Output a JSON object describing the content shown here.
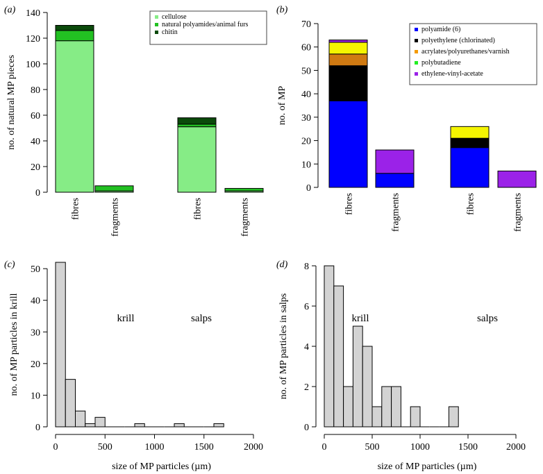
{
  "chart_data": [
    {
      "panel": "(a)",
      "type": "bar",
      "stacked": true,
      "ylabel": "no. of natural MP pieces",
      "ylim": [
        0,
        140
      ],
      "yticks": [
        0,
        20,
        40,
        60,
        80,
        100,
        120,
        140
      ],
      "categories": [
        "fibres",
        "fragments",
        "fibres",
        "fragments"
      ],
      "groups": [
        "krill",
        "salps"
      ],
      "series": [
        {
          "name": "cellulose",
          "color": "#86ec86",
          "values": [
            118,
            1,
            51,
            1
          ]
        },
        {
          "name": "natural polyamides/animal furs",
          "color": "#22c022",
          "values": [
            8,
            4,
            2,
            2
          ]
        },
        {
          "name": "chitin",
          "color": "#0b4a0b",
          "values": [
            4,
            0,
            5,
            0
          ]
        }
      ]
    },
    {
      "panel": "(b)",
      "type": "bar",
      "stacked": true,
      "ylabel": "no. of MP",
      "ylim": [
        0,
        70
      ],
      "yticks": [
        0,
        10,
        20,
        30,
        40,
        50,
        60,
        70
      ],
      "categories": [
        "fibres",
        "fragments",
        "fibres",
        "fragments"
      ],
      "groups": [
        "krill",
        "salps"
      ],
      "series": [
        {
          "name": "polyamide (6)",
          "color": "#0000ff",
          "values": [
            37,
            6,
            17,
            0
          ]
        },
        {
          "name": "polyethylene (chlorinated)",
          "color": "#000000",
          "values": [
            15,
            0,
            4,
            0
          ]
        },
        {
          "name": "acrylates/polyurethanes/varnish",
          "color": "#d07a12",
          "values": [
            5,
            0,
            0,
            0
          ]
        },
        {
          "name": "polybutadiene",
          "color": "#f5f500",
          "values": [
            5,
            0,
            5,
            0
          ]
        },
        {
          "name": "ethylene-vinyl-acetate",
          "color": "#9b22e8",
          "values": [
            1,
            10,
            0,
            7
          ]
        }
      ],
      "legend_marker_colors": [
        "#0000ff",
        "#000000",
        "#f59a00",
        "#22ee22",
        "#9b22e8"
      ]
    },
    {
      "panel": "(c)",
      "type": "histogram",
      "xlabel": "size of MP particles (µm)",
      "ylabel": "no. of MP particles in  krill",
      "xlim": [
        0,
        2000
      ],
      "ylim": [
        0,
        52
      ],
      "xticks": [
        0,
        500,
        1000,
        1500,
        2000
      ],
      "yticks": [
        0,
        10,
        20,
        30,
        40,
        50
      ],
      "bin_width": 100,
      "bin_starts": [
        0,
        100,
        200,
        300,
        400,
        500,
        600,
        700,
        800,
        900,
        1000,
        1100,
        1200,
        1300,
        1400,
        1500,
        1600
      ],
      "values": [
        52,
        15,
        5,
        1,
        3,
        0,
        0,
        0,
        1,
        0,
        0,
        0,
        1,
        0,
        0,
        0,
        1
      ],
      "bar_color": "#d3d3d3"
    },
    {
      "panel": "(d)",
      "type": "histogram",
      "xlabel": "size of MP particles (µm)",
      "ylabel": "no. of MP particles in  salps",
      "xlim": [
        0,
        2000
      ],
      "ylim": [
        0,
        8
      ],
      "xticks": [
        0,
        500,
        1000,
        1500,
        2000
      ],
      "yticks": [
        0,
        2,
        4,
        6,
        8
      ],
      "bin_width": 100,
      "bin_starts": [
        0,
        100,
        200,
        300,
        400,
        500,
        600,
        700,
        800,
        900,
        1000,
        1100,
        1200,
        1300
      ],
      "values": [
        8,
        7,
        2,
        5,
        4,
        1,
        2,
        2,
        0,
        1,
        0,
        0,
        0,
        1
      ],
      "bar_color": "#d3d3d3"
    }
  ]
}
